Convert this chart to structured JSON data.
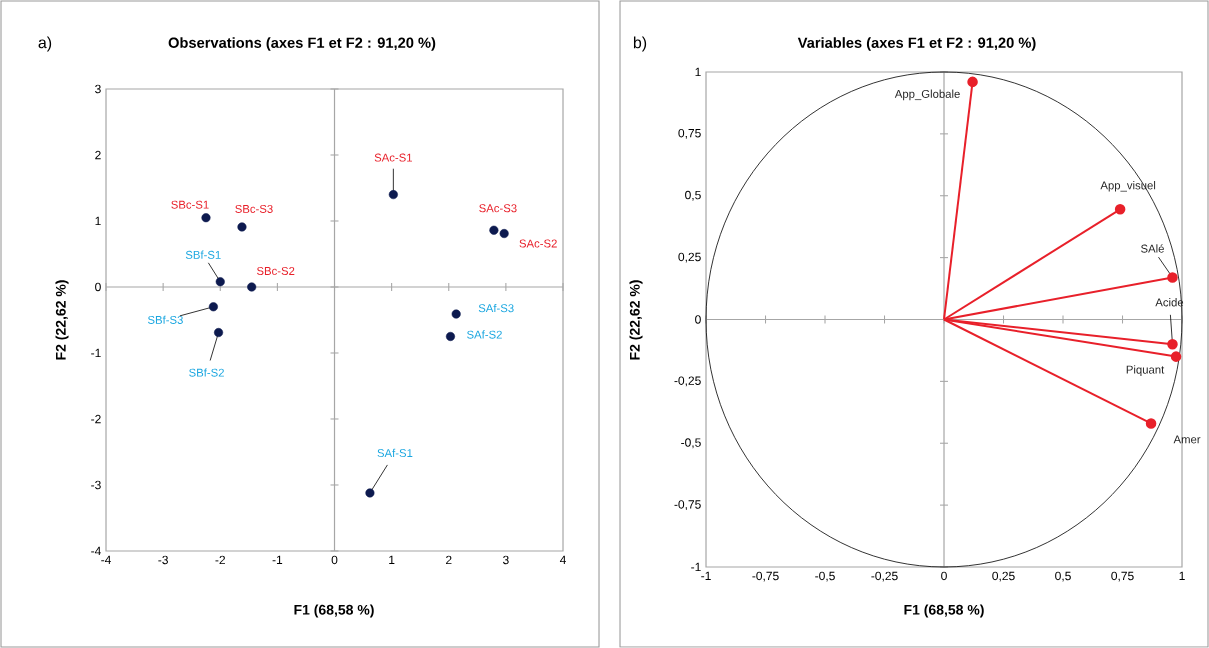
{
  "chart_data": [
    {
      "type": "scatter",
      "title": "Observations (axes F1 et F2 : 91,20 %)",
      "xlabel": "F1 (68,58 %)",
      "ylabel": "F2 (22,62 %)",
      "annotations": [
        "a)"
      ],
      "marker": "circle",
      "xlim": [
        -4,
        4
      ],
      "ylim": [
        -4,
        3
      ],
      "xticks": [
        -4,
        -3,
        -2,
        -1,
        0,
        1,
        2,
        3,
        4
      ],
      "yticks": [
        -4,
        -3,
        -2,
        -1,
        0,
        1,
        2,
        3
      ],
      "series": [
        {
          "color": "#0d1a4f",
          "x": [
            -2.25,
            -1.62,
            -1.45,
            1.03,
            2.79,
            2.97
          ],
          "values": [
            1.05,
            0.91,
            0.0,
            1.4,
            0.86,
            0.81
          ],
          "value_labels": [
            "SBc-S1",
            "SBc-S3",
            "SBc-S2",
            "SAc-S1",
            "SAc-S3",
            "SAc-S2"
          ]
        },
        {
          "color": "#0d1a4f",
          "x": [
            -2.0,
            -2.12,
            -2.03,
            2.13,
            2.03,
            0.62
          ],
          "values": [
            0.08,
            -0.3,
            -0.69,
            -0.41,
            -0.75,
            -3.12
          ],
          "value_labels": [
            "SBf-S1",
            "SBf-S3",
            "SBf-S2",
            "SAf-S3",
            "SAf-S2",
            "SAf-S1"
          ]
        }
      ]
    },
    {
      "type": "line",
      "title": "Variables (axes F1 et F2 : 91,20 %)",
      "xlabel": "F1 (68,58 %)",
      "ylabel": "F2 (22,62 %)",
      "annotations": [
        "b)"
      ],
      "marker": "circle",
      "xlim": [
        -1,
        1
      ],
      "ylim": [
        -1,
        1
      ],
      "xticks": [
        -1,
        {
          "value": -0.75,
          "label": "-0,75"
        },
        {
          "value": -0.5,
          "label": "-0,5"
        },
        {
          "value": -0.25,
          "label": "-0,25"
        },
        0,
        {
          "value": 0.25,
          "label": "0,25"
        },
        {
          "value": 0.5,
          "label": "0,5"
        },
        {
          "value": 0.75,
          "label": "0,75"
        },
        1
      ],
      "yticks": [
        -1,
        {
          "value": -0.75,
          "label": "-0,75"
        },
        {
          "value": -0.5,
          "label": "-0,5"
        },
        {
          "value": -0.25,
          "label": "-0,25"
        },
        0,
        {
          "value": 0.25,
          "label": "0,25"
        },
        {
          "value": 0.5,
          "label": "0,5"
        },
        {
          "value": 0.75,
          "label": "0,75"
        },
        1
      ],
      "series": [
        {
          "name": "App_Globale",
          "color": "#e8202a",
          "x": [
            0,
            0.12
          ],
          "values": [
            0,
            0.96
          ]
        },
        {
          "name": "App_visuel",
          "color": "#e8202a",
          "x": [
            0,
            0.74
          ],
          "values": [
            0,
            0.445
          ]
        },
        {
          "name": "SAlé",
          "color": "#e8202a",
          "x": [
            0,
            0.96
          ],
          "values": [
            0,
            0.17
          ]
        },
        {
          "name": "Acide",
          "color": "#e8202a",
          "x": [
            0,
            0.96
          ],
          "values": [
            0,
            -0.1
          ]
        },
        {
          "name": "Piquant",
          "color": "#e8202a",
          "x": [
            0,
            0.975
          ],
          "values": [
            0,
            -0.15
          ]
        },
        {
          "name": "Amer",
          "color": "#e8202a",
          "x": [
            0,
            0.87
          ],
          "values": [
            0,
            -0.42
          ]
        }
      ]
    }
  ]
}
